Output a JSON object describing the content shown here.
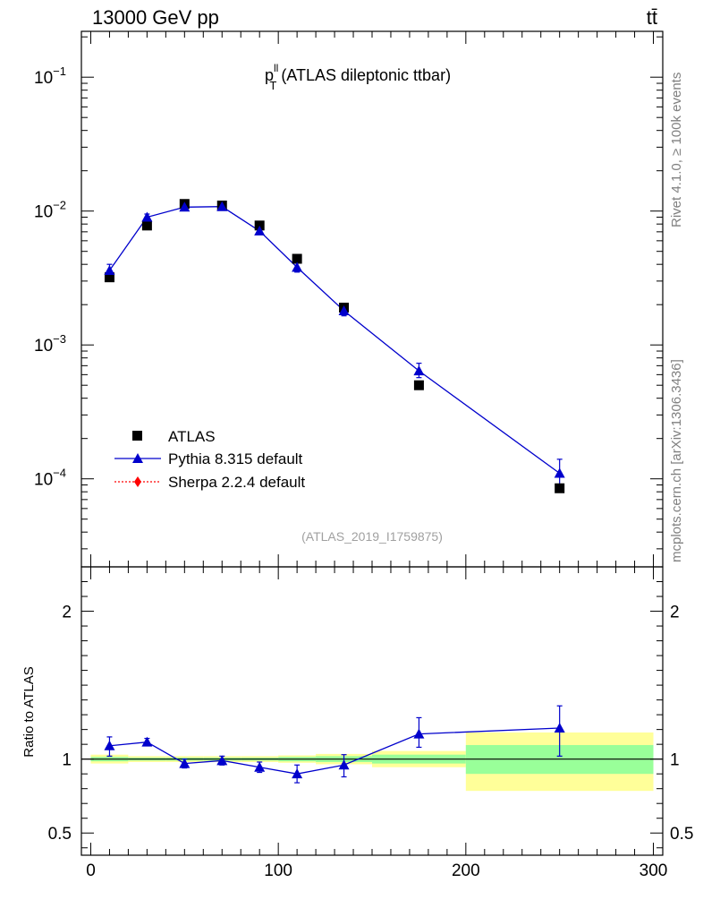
{
  "header": {
    "left_label": "13000 GeV pp",
    "right_label": "tt̄"
  },
  "side_labels": {
    "top": "Rivet 4.1.0, ≥ 100k events",
    "bottom": "mcplots.cern.ch [arXiv:1306.3436]"
  },
  "chart_data": [
    {
      "type": "scatter",
      "panel": "main",
      "title_main": "p",
      "title_sup": "ll",
      "title_sub": "T",
      "title_suffix": " (ATLAS dileptonic ttbar)",
      "analysis_id": "(ATLAS_2019_I1759875)",
      "y_scale": "log",
      "ylim": [
        2.2e-05,
        0.22
      ],
      "xlim": [
        -5,
        305
      ],
      "y_ticks": [
        {
          "value": 0.1,
          "base": "10",
          "exp": "−1"
        },
        {
          "value": 0.01,
          "base": "10",
          "exp": "−2"
        },
        {
          "value": 0.001,
          "base": "10",
          "exp": "−3"
        },
        {
          "value": 0.0001,
          "base": "10",
          "exp": "−4"
        }
      ],
      "legend": [
        {
          "label": "ATLAS",
          "marker": "square",
          "color": "#000000"
        },
        {
          "label": "Pythia 8.315 default",
          "marker": "triangle",
          "color": "#0000cc"
        },
        {
          "label": "Sherpa 2.2.4 default",
          "marker": "diamond",
          "color": "#ff0000"
        }
      ],
      "series": [
        {
          "name": "ATLAS",
          "x": [
            10,
            30,
            50,
            70,
            90,
            110,
            135,
            175,
            250
          ],
          "y": [
            0.0032,
            0.0078,
            0.0113,
            0.011,
            0.0078,
            0.0044,
            0.0019,
            0.0005,
            8.5e-05
          ]
        },
        {
          "name": "Pythia 8.315 default",
          "x": [
            10,
            30,
            50,
            70,
            90,
            110,
            135,
            175,
            250
          ],
          "y": [
            0.0036,
            0.009,
            0.0107,
            0.0108,
            0.0071,
            0.0038,
            0.0018,
            0.00064,
            0.00011
          ],
          "err_lo": [
            0.0032,
            0.0085,
            0.0102,
            0.0104,
            0.0067,
            0.0035,
            0.00165,
            0.00057,
            8.8e-05
          ],
          "err_hi": [
            0.004,
            0.0095,
            0.0111,
            0.0112,
            0.0075,
            0.0041,
            0.00195,
            0.00073,
            0.00014
          ]
        }
      ]
    },
    {
      "type": "scatter",
      "panel": "ratio",
      "ylabel": "Ratio to ATLAS",
      "ylim": [
        0.35,
        2.3
      ],
      "xlim": [
        -5,
        305
      ],
      "y_ticks": [
        {
          "value": 0.5,
          "label": "0.5"
        },
        {
          "value": 1,
          "label": "1"
        },
        {
          "value": 2,
          "label": "2"
        }
      ],
      "x_ticks": [
        {
          "value": 0,
          "label": "0"
        },
        {
          "value": 100,
          "label": "100"
        },
        {
          "value": 200,
          "label": "200"
        },
        {
          "value": 300,
          "label": "300"
        }
      ],
      "bands": [
        {
          "x0": 0,
          "x1": 20,
          "y1_lo": 0.985,
          "y1_hi": 1.015,
          "y2_lo": 0.97,
          "y2_hi": 1.03
        },
        {
          "x0": 20,
          "x1": 40,
          "y1_lo": 0.99,
          "y1_hi": 1.01,
          "y2_lo": 0.98,
          "y2_hi": 1.02
        },
        {
          "x0": 40,
          "x1": 60,
          "y1_lo": 0.99,
          "y1_hi": 1.01,
          "y2_lo": 0.98,
          "y2_hi": 1.02
        },
        {
          "x0": 60,
          "x1": 80,
          "y1_lo": 0.99,
          "y1_hi": 1.01,
          "y2_lo": 0.98,
          "y2_hi": 1.02
        },
        {
          "x0": 80,
          "x1": 100,
          "y1_lo": 0.99,
          "y1_hi": 1.01,
          "y2_lo": 0.98,
          "y2_hi": 1.02
        },
        {
          "x0": 100,
          "x1": 120,
          "y1_lo": 0.985,
          "y1_hi": 1.015,
          "y2_lo": 0.975,
          "y2_hi": 1.025
        },
        {
          "x0": 120,
          "x1": 150,
          "y1_lo": 0.98,
          "y1_hi": 1.02,
          "y2_lo": 0.965,
          "y2_hi": 1.035
        },
        {
          "x0": 150,
          "x1": 200,
          "y1_lo": 0.97,
          "y1_hi": 1.03,
          "y2_lo": 0.945,
          "y2_hi": 1.055
        },
        {
          "x0": 200,
          "x1": 300,
          "y1_lo": 0.9,
          "y1_hi": 1.095,
          "y2_lo": 0.785,
          "y2_hi": 1.18
        }
      ],
      "series": [
        {
          "name": "Pythia 8.315 default",
          "x": [
            10,
            30,
            50,
            70,
            90,
            110,
            135,
            175,
            250
          ],
          "y": [
            1.09,
            1.115,
            0.97,
            0.99,
            0.945,
            0.9,
            0.96,
            1.17,
            1.21
          ],
          "err_lo": [
            1.02,
            1.09,
            0.94,
            0.96,
            0.91,
            0.84,
            0.88,
            1.08,
            1.02
          ],
          "err_hi": [
            1.15,
            1.14,
            1.0,
            1.02,
            0.98,
            0.96,
            1.03,
            1.28,
            1.36
          ]
        }
      ]
    }
  ]
}
